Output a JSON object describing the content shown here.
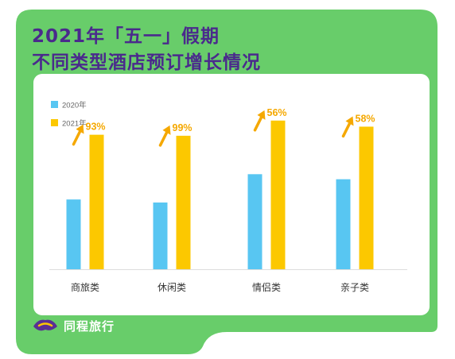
{
  "title_line1": "2021年「五一」假期",
  "title_line2": "不同类型酒店预订增长情况",
  "brand": "同程旅行",
  "colors": {
    "background": "#68cd6a",
    "title": "#4a2a8c",
    "series_2020": "#58c6f2",
    "series_2021": "#fcc800",
    "growth_label": "#f5a800"
  },
  "chart_data": {
    "type": "bar",
    "categories": [
      "商旅类",
      "休闲类",
      "情侣类",
      "亲子类"
    ],
    "series": [
      {
        "name": "2020年",
        "values": [
          69,
          66,
          94,
          89
        ]
      },
      {
        "name": "2021年",
        "values": [
          133,
          132,
          147,
          141
        ]
      }
    ],
    "growth_labels": [
      "93%",
      "99%",
      "56%",
      "58%"
    ],
    "legend_position": "top-left",
    "grid": false,
    "ylim": [
      0,
      150
    ]
  }
}
